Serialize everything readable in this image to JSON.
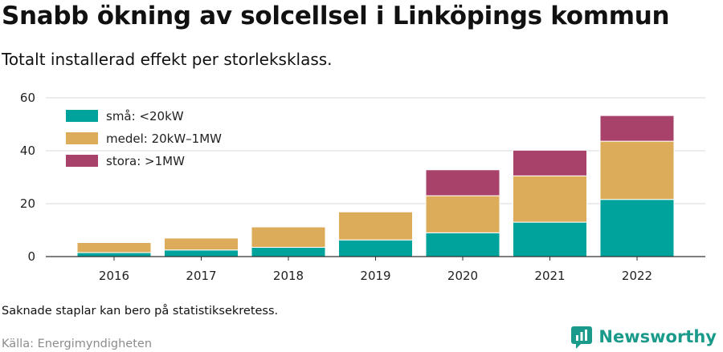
{
  "title": "Snabb ökning av solcellsel i Linköpings kommun",
  "subtitle": "Totalt installerad effekt per storleksklass.",
  "note": "Saknade staplar kan bero på statistiksekretess.",
  "source": "Källa: Energimyndigheten",
  "brand": {
    "name": "Newsworthy",
    "icon": "newsworthy-logo-icon",
    "color": "#1a9a8a"
  },
  "chart_data": {
    "type": "bar",
    "stacked": true,
    "categories": [
      "2016",
      "2017",
      "2018",
      "2019",
      "2020",
      "2021",
      "2022"
    ],
    "series": [
      {
        "name": "små: <20kW",
        "color": "#00a39b",
        "values": [
          1.5,
          2.5,
          3.5,
          6.3,
          9.0,
          13.0,
          21.6
        ]
      },
      {
        "name": "medel: 20kW–1MW",
        "color": "#dcac5a",
        "values": [
          3.8,
          4.5,
          7.7,
          10.6,
          14.0,
          17.5,
          22.0
        ]
      },
      {
        "name": "stora: >1MW",
        "color": "#a8426a",
        "values": [
          0,
          0,
          0,
          0,
          9.8,
          9.7,
          9.7
        ]
      }
    ],
    "yticks": [
      "0",
      "20",
      "40",
      "60"
    ],
    "ylim": [
      0,
      60
    ],
    "grid": true,
    "legend": "top-left"
  }
}
